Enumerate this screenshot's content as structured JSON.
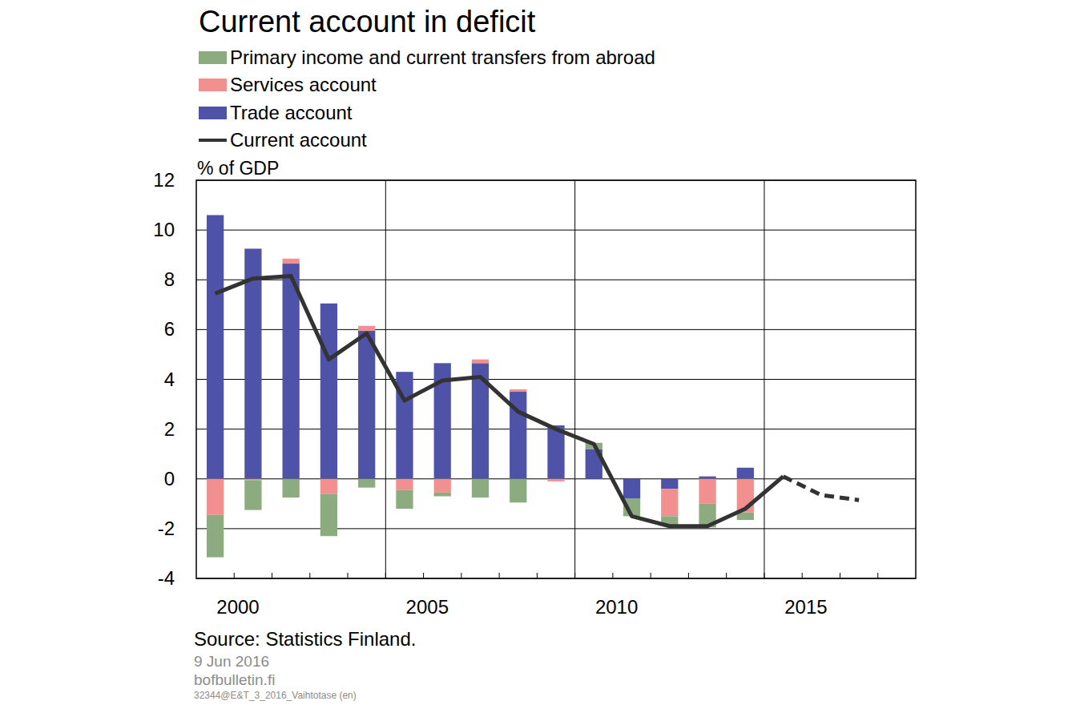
{
  "chart_data": {
    "type": "bar",
    "stacked": true,
    "title": "Current account in deficit",
    "y_label": "% of GDP",
    "source": "Source: Statistics Finland.",
    "footer": [
      "9 Jun 2016",
      "bofbulletin.fi",
      "32344@E&T_3_2016_Vaihtotase (en)"
    ],
    "categories": [
      "2000",
      null,
      null,
      null,
      null,
      "2005",
      null,
      null,
      null,
      null,
      "2010",
      null,
      null,
      null,
      null,
      "2015",
      null,
      null,
      null
    ],
    "series": [
      {
        "name": "Primary income and current transfers from abroad",
        "color": "#8cab7f",
        "values": [
          -1.7,
          -1.2,
          -0.75,
          -1.7,
          -0.35,
          -0.75,
          -0.15,
          -0.75,
          -0.95,
          0,
          0.25,
          -0.7,
          -0.4,
          -0.95,
          -0.3,
          null,
          null,
          null,
          null
        ]
      },
      {
        "name": "Services account",
        "color": "#f29090",
        "values": [
          -1.45,
          -0.05,
          0.2,
          -0.6,
          0.2,
          -0.45,
          -0.55,
          0.15,
          0.1,
          -0.1,
          0,
          0,
          -1.1,
          -1.0,
          -1.35,
          null,
          null,
          null,
          null
        ]
      },
      {
        "name": "Trade account",
        "color": "#4e53a8",
        "values": [
          10.6,
          9.25,
          8.65,
          7.05,
          5.95,
          4.3,
          4.65,
          4.65,
          3.5,
          2.15,
          1.2,
          -0.8,
          -0.4,
          0.1,
          0.45,
          null,
          null,
          null,
          null
        ]
      },
      {
        "name": "Current account",
        "color": "#333333",
        "type": "line",
        "line_style": "solid",
        "values": [
          7.45,
          8.05,
          8.15,
          4.8,
          5.85,
          3.15,
          3.95,
          4.1,
          2.7,
          2.0,
          1.4,
          -1.5,
          -1.9,
          -1.9,
          -1.2,
          0.1,
          null,
          null,
          null
        ]
      },
      {
        "name": "Current account",
        "color": "#333333",
        "type": "line",
        "line_style": "dashed",
        "values": [
          null,
          null,
          null,
          null,
          null,
          null,
          null,
          null,
          null,
          null,
          null,
          null,
          null,
          null,
          null,
          0.1,
          -0.65,
          -0.85,
          null
        ]
      }
    ],
    "ylim": [
      -4,
      12
    ],
    "yticks": [
      -4,
      -2,
      0,
      2,
      4,
      6,
      8,
      10,
      12
    ],
    "grid": true,
    "legend": "top-left"
  }
}
